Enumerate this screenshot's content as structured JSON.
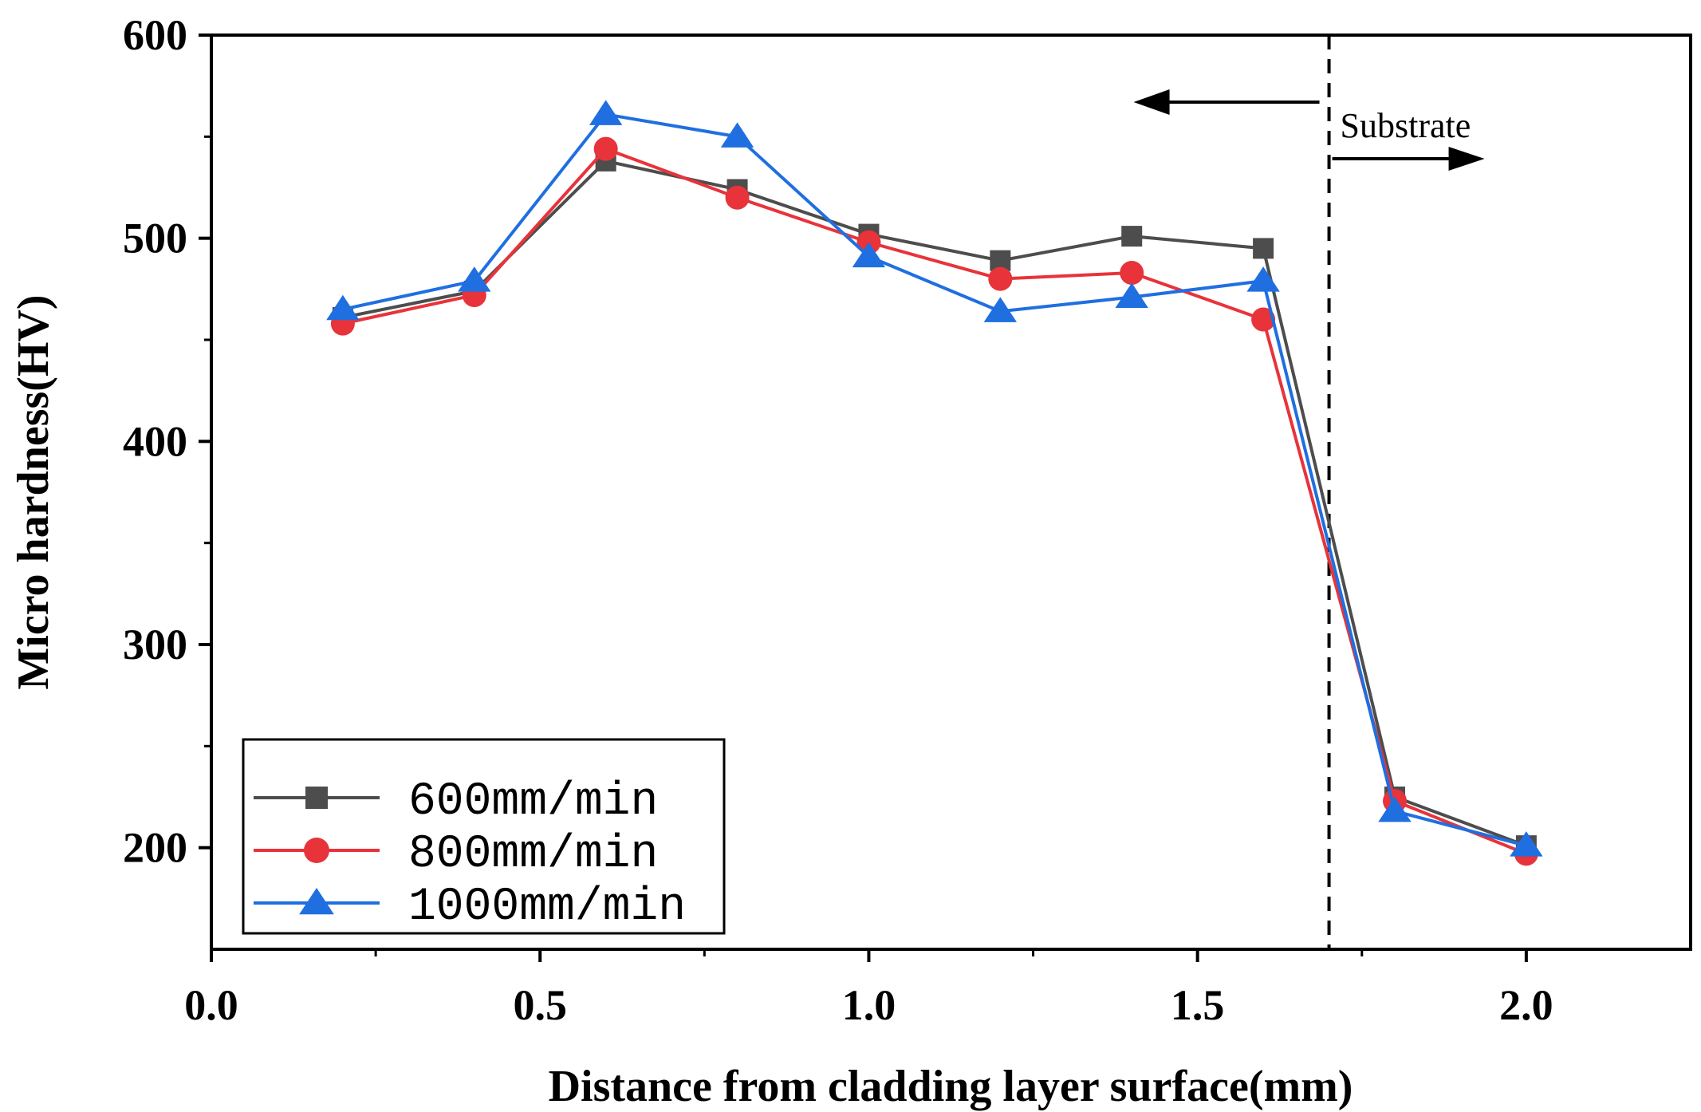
{
  "chart_data": {
    "type": "line",
    "title": "",
    "xlabel": "Distance from cladding layer surface(mm)",
    "ylabel": "Micro hardness(HV)",
    "xlim": [
      0.0,
      2.25
    ],
    "ylim": [
      150,
      600
    ],
    "xticks": [
      0.0,
      0.5,
      1.0,
      1.5,
      2.0
    ],
    "xtick_labels": [
      "0.0",
      "0.5",
      "1.0",
      "1.5",
      "2.0"
    ],
    "xminor": [
      0.25,
      0.75,
      1.25,
      1.75
    ],
    "yticks": [
      200,
      300,
      400,
      500,
      600
    ],
    "ytick_labels": [
      "200",
      "300",
      "400",
      "500",
      "600"
    ],
    "yminor": [
      250,
      350,
      450,
      550
    ],
    "grid": false,
    "legend_position": "bottom-left",
    "x": [
      0.2,
      0.4,
      0.6,
      0.8,
      1.0,
      1.2,
      1.4,
      1.6,
      1.8,
      2.0
    ],
    "series": [
      {
        "name": "600mm/min",
        "marker": "square",
        "color": "#4d4d4d",
        "marker_color": "#4d4d4d",
        "values": [
          461,
          474,
          538,
          524,
          502,
          489,
          501,
          495,
          225,
          201
        ]
      },
      {
        "name": "800mm/min",
        "marker": "circle",
        "color": "#e8333a",
        "marker_color": "#e8333a",
        "values": [
          458,
          472,
          544,
          520,
          498,
          480,
          483,
          460,
          223,
          197
        ]
      },
      {
        "name": "1000mm/min",
        "marker": "triangle",
        "color": "#1f6fe0",
        "marker_color": "#1f6fe0",
        "values": [
          465,
          479,
          561,
          550,
          491,
          464,
          471,
          479,
          218,
          201
        ]
      }
    ],
    "annotations": {
      "boundary_x": 1.7,
      "boundary_style": "dashed",
      "substrate_label": "Substrate",
      "arrow_left": "cladding side",
      "arrow_right": "substrate side"
    }
  }
}
